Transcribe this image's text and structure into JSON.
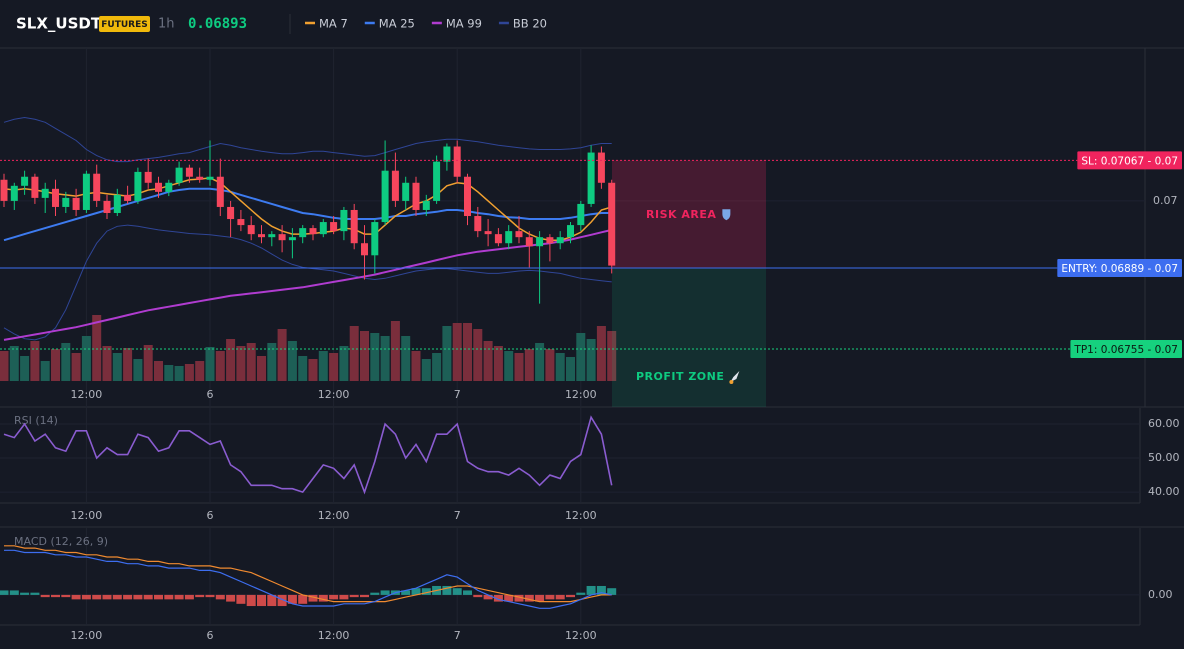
{
  "header": {
    "symbol": "SLX_USDT",
    "badge": "FUTURES",
    "interval": "1h",
    "price": 0.06893
  },
  "chart_data": [
    {
      "type": "candlestick",
      "open": [
        0.07035,
        0.07,
        0.07025,
        0.0704,
        0.07005,
        0.0702,
        0.0699,
        0.07005,
        0.06985,
        0.07045,
        0.07,
        0.0698,
        0.0701,
        0.07,
        0.07048,
        0.0703,
        0.07015,
        0.0703,
        0.07055,
        0.0704,
        0.07035,
        0.0704,
        0.0699,
        0.0697,
        0.0696,
        0.06945,
        0.0694,
        0.06945,
        0.06935,
        0.0694,
        0.06955,
        0.06945,
        0.06965,
        0.0695,
        0.06985,
        0.0693,
        0.0691,
        0.06965,
        0.0705,
        0.07,
        0.0703,
        0.06985,
        0.07,
        0.07065,
        0.0709,
        0.0704,
        0.06975,
        0.0695,
        0.06945,
        0.0693,
        0.0695,
        0.0694,
        0.06925,
        0.0694,
        0.0693,
        0.0694,
        0.0696,
        0.06995,
        0.0708,
        0.0703
      ],
      "high": [
        0.07045,
        0.0703,
        0.0705,
        0.07045,
        0.0703,
        0.07035,
        0.07015,
        0.0702,
        0.0705,
        0.0706,
        0.0701,
        0.0702,
        0.07025,
        0.07055,
        0.0707,
        0.0704,
        0.07035,
        0.07065,
        0.0706,
        0.07055,
        0.071,
        0.0707,
        0.07,
        0.06985,
        0.06975,
        0.0696,
        0.0695,
        0.0696,
        0.06955,
        0.0696,
        0.0696,
        0.0697,
        0.06975,
        0.0699,
        0.06995,
        0.0696,
        0.0697,
        0.071,
        0.0708,
        0.0704,
        0.0704,
        0.0701,
        0.07075,
        0.07095,
        0.071,
        0.07045,
        0.0699,
        0.0697,
        0.06955,
        0.0696,
        0.06975,
        0.0695,
        0.0695,
        0.06945,
        0.0695,
        0.06965,
        0.07,
        0.07092,
        0.0709,
        0.07035
      ],
      "low": [
        0.0699,
        0.06985,
        0.0701,
        0.06995,
        0.0698,
        0.06975,
        0.0698,
        0.06975,
        0.0698,
        0.0699,
        0.0697,
        0.06975,
        0.06995,
        0.06995,
        0.0702,
        0.07005,
        0.07008,
        0.07025,
        0.0703,
        0.0703,
        0.07025,
        0.06975,
        0.0694,
        0.0695,
        0.06935,
        0.0693,
        0.06925,
        0.06915,
        0.06905,
        0.0693,
        0.06935,
        0.0694,
        0.06945,
        0.06935,
        0.0692,
        0.0687,
        0.0688,
        0.0696,
        0.0699,
        0.06985,
        0.06975,
        0.06975,
        0.06995,
        0.0705,
        0.0703,
        0.0696,
        0.0694,
        0.06925,
        0.06925,
        0.0692,
        0.0693,
        0.0689,
        0.0683,
        0.069,
        0.0692,
        0.0693,
        0.0695,
        0.0699,
        0.0702,
        0.0688
      ],
      "close": [
        0.07,
        0.07025,
        0.0704,
        0.07005,
        0.0702,
        0.0699,
        0.07005,
        0.06985,
        0.07045,
        0.07,
        0.0698,
        0.0701,
        0.07,
        0.07048,
        0.0703,
        0.07015,
        0.0703,
        0.07055,
        0.0704,
        0.07035,
        0.0704,
        0.0699,
        0.0697,
        0.0696,
        0.06945,
        0.0694,
        0.06945,
        0.06935,
        0.0694,
        0.06955,
        0.06945,
        0.06965,
        0.0695,
        0.06985,
        0.0693,
        0.0691,
        0.06965,
        0.0705,
        0.07,
        0.0703,
        0.06985,
        0.07,
        0.07065,
        0.0709,
        0.0704,
        0.06975,
        0.0695,
        0.06945,
        0.0693,
        0.0695,
        0.0694,
        0.06925,
        0.0694,
        0.0693,
        0.0694,
        0.0696,
        0.06995,
        0.0708,
        0.0703,
        0.06893
      ],
      "volume": [
        30,
        35,
        25,
        40,
        20,
        32,
        38,
        28,
        45,
        66,
        35,
        28,
        33,
        22,
        36,
        20,
        16,
        15,
        17,
        20,
        34,
        30,
        42,
        35,
        38,
        25,
        38,
        52,
        40,
        25,
        22,
        30,
        28,
        35,
        55,
        50,
        48,
        45,
        60,
        45,
        30,
        22,
        28,
        55,
        58,
        58,
        52,
        40,
        35,
        30,
        28,
        32,
        38,
        32,
        28,
        24,
        48,
        42,
        55,
        50
      ],
      "volume_lim": [
        0,
        100
      ],
      "up_color": "#0ecb81",
      "down_color": "#f6465d",
      "volume_up_color": "#1d5f56",
      "volume_down_color": "#7a2e3c",
      "series": [
        {
          "name": "MA 7",
          "color": "#f0a030",
          "values": [
            0.0702,
            0.07018,
            0.0702,
            0.07018,
            0.07015,
            0.07012,
            0.0701,
            0.07008,
            0.07012,
            0.07014,
            0.07012,
            0.0701,
            0.07008,
            0.07012,
            0.07018,
            0.0702,
            0.07025,
            0.0703,
            0.07035,
            0.07036,
            0.07038,
            0.0703,
            0.07015,
            0.07,
            0.06985,
            0.0697,
            0.06958,
            0.0695,
            0.06945,
            0.06945,
            0.06946,
            0.06948,
            0.0695,
            0.06955,
            0.06953,
            0.06945,
            0.06945,
            0.0696,
            0.06975,
            0.06985,
            0.06995,
            0.07,
            0.0701,
            0.07025,
            0.0703,
            0.07028,
            0.07015,
            0.07,
            0.06985,
            0.0697,
            0.06955,
            0.06945,
            0.06938,
            0.06935,
            0.06935,
            0.0694,
            0.06948,
            0.06965,
            0.06985,
            0.0699
          ]
        },
        {
          "name": "MA 25",
          "color": "#3d7bf0",
          "values": [
            0.06935,
            0.0694,
            0.06945,
            0.0695,
            0.06955,
            0.0696,
            0.06965,
            0.0697,
            0.06975,
            0.0698,
            0.06985,
            0.0699,
            0.06995,
            0.07,
            0.07005,
            0.0701,
            0.07015,
            0.07018,
            0.0702,
            0.0702,
            0.0702,
            0.07018,
            0.07015,
            0.0701,
            0.07005,
            0.07,
            0.06995,
            0.0699,
            0.06985,
            0.0698,
            0.06978,
            0.06975,
            0.06972,
            0.0697,
            0.0697,
            0.0697,
            0.0697,
            0.06972,
            0.06975,
            0.06975,
            0.06978,
            0.0698,
            0.06982,
            0.06985,
            0.06985,
            0.06983,
            0.0698,
            0.06978,
            0.06975,
            0.06973,
            0.06972,
            0.0697,
            0.0697,
            0.0697,
            0.0697,
            0.06972,
            0.06975,
            0.06978,
            0.0698,
            0.0698
          ]
        },
        {
          "name": "MA 99",
          "color": "#b03cd0",
          "values": [
            0.0677,
            0.06773,
            0.06776,
            0.06779,
            0.06782,
            0.06785,
            0.06788,
            0.06791,
            0.06795,
            0.06799,
            0.06803,
            0.06807,
            0.06811,
            0.06815,
            0.06819,
            0.06822,
            0.06825,
            0.06828,
            0.06831,
            0.06834,
            0.06837,
            0.0684,
            0.06843,
            0.06845,
            0.06847,
            0.06849,
            0.06851,
            0.06853,
            0.06855,
            0.06857,
            0.0686,
            0.06863,
            0.06866,
            0.06869,
            0.06872,
            0.06875,
            0.06878,
            0.06882,
            0.06886,
            0.0689,
            0.06894,
            0.06898,
            0.06902,
            0.06906,
            0.0691,
            0.06913,
            0.06916,
            0.06918,
            0.0692,
            0.06922,
            0.06924,
            0.06926,
            0.06928,
            0.0693,
            0.06933,
            0.06936,
            0.0694,
            0.06944,
            0.06948,
            0.06952
          ]
        },
        {
          "name": "BB 20",
          "color": "#2f4596",
          "upper": [
            0.0713,
            0.07135,
            0.07138,
            0.07135,
            0.0713,
            0.0712,
            0.0711,
            0.071,
            0.07085,
            0.07075,
            0.07068,
            0.07065,
            0.07065,
            0.07068,
            0.0707,
            0.07072,
            0.07075,
            0.07078,
            0.0708,
            0.07085,
            0.0709,
            0.07095,
            0.07092,
            0.07088,
            0.07085,
            0.07082,
            0.0708,
            0.07078,
            0.07078,
            0.0708,
            0.07082,
            0.07082,
            0.0708,
            0.07078,
            0.07076,
            0.07074,
            0.07075,
            0.0708,
            0.07085,
            0.0709,
            0.07095,
            0.07098,
            0.071,
            0.07102,
            0.07102,
            0.071,
            0.07098,
            0.07095,
            0.07092,
            0.0709,
            0.07088,
            0.07086,
            0.07085,
            0.07085,
            0.07085,
            0.07086,
            0.07088,
            0.07092,
            0.07095,
            0.07095
          ],
          "lower": [
            0.0679,
            0.0678,
            0.06772,
            0.0677,
            0.06775,
            0.0679,
            0.0682,
            0.0686,
            0.069,
            0.0693,
            0.0695,
            0.06958,
            0.0696,
            0.06958,
            0.06955,
            0.06952,
            0.0695,
            0.06948,
            0.06946,
            0.06945,
            0.06944,
            0.06942,
            0.0694,
            0.06936,
            0.0693,
            0.06922,
            0.06912,
            0.06902,
            0.06895,
            0.0689,
            0.06888,
            0.06886,
            0.06884,
            0.0688,
            0.06876,
            0.06872,
            0.0687,
            0.06872,
            0.06876,
            0.0688,
            0.06884,
            0.06886,
            0.06888,
            0.06888,
            0.06886,
            0.06884,
            0.06882,
            0.0688,
            0.0688,
            0.06882,
            0.06884,
            0.06885,
            0.06884,
            0.06882,
            0.0688,
            0.06876,
            0.06872,
            0.0687,
            0.06868,
            0.06866
          ]
        }
      ],
      "ylim": [
        0.06659,
        0.07253
      ],
      "yticks": [
        0.07
      ],
      "xticks": [
        {
          "value": 8,
          "label": "12:00"
        },
        {
          "value": 20,
          "label": "6"
        },
        {
          "value": 32,
          "label": "12:00"
        },
        {
          "value": 44,
          "label": "7"
        },
        {
          "value": 56,
          "label": "12:00"
        }
      ],
      "grid": true,
      "levels": [
        {
          "value": 0.07067,
          "label": "SL: 0.07067 - 0.07",
          "color": "#f0245e",
          "text_color": "#ffffff",
          "dash": true
        },
        {
          "value": 0.06889,
          "label": "ENTRY: 0.06889 - 0.07",
          "color": "#3d6ef0",
          "text_color": "#ffffff",
          "dash": false
        },
        {
          "value": 0.06755,
          "label": "TP1: 0.06755 - 0.07",
          "color": "#16d17e",
          "text_color": "#0b1a12",
          "dash": true
        }
      ],
      "zones": [
        {
          "label": "RISK AREA",
          "color": "#f0245e"
        },
        {
          "label": "PROFIT ZONE",
          "color": "#0ecb81"
        }
      ]
    },
    {
      "type": "line",
      "title": "RSI (14)",
      "color": "#8a5cd0",
      "values": [
        57,
        56,
        60,
        55,
        57,
        53,
        52,
        58,
        58,
        50,
        53,
        51,
        51,
        57,
        56,
        52,
        53,
        58,
        58,
        56,
        54,
        55,
        48,
        46,
        42,
        42,
        42,
        41,
        41,
        40,
        44,
        48,
        47,
        44,
        48,
        40,
        49,
        60,
        57,
        50,
        54,
        49,
        57,
        57,
        60,
        49,
        47,
        46,
        46,
        45,
        47,
        45,
        42,
        45,
        44,
        49,
        51,
        62,
        57,
        42
      ],
      "ylim": [
        36.8,
        64.7
      ],
      "yticks": [
        {
          "value": 60,
          "label": "60.00"
        },
        {
          "value": 50,
          "label": "50.00"
        },
        {
          "value": 40,
          "label": "40.00"
        }
      ],
      "xticks": [
        {
          "value": 8,
          "label": "12:00"
        },
        {
          "value": 20,
          "label": "6"
        },
        {
          "value": 32,
          "label": "12:00"
        },
        {
          "value": 44,
          "label": "7"
        },
        {
          "value": 56,
          "label": "12:00"
        }
      ],
      "grid": true
    },
    {
      "type": "macd",
      "title": "MACD (12, 26, 9)",
      "macd_color": "#3d6ef0",
      "signal_color": "#f08a30",
      "up_color": "#26a69a",
      "down_color": "#ef5350",
      "macd": [
        0.0002,
        0.0002,
        0.00019,
        0.00019,
        0.00019,
        0.00018,
        0.00018,
        0.00017,
        0.00017,
        0.00016,
        0.00015,
        0.00015,
        0.00014,
        0.00014,
        0.00013,
        0.00013,
        0.00012,
        0.00012,
        0.00012,
        0.00011,
        0.00011,
        0.0001,
        8e-05,
        6e-05,
        4e-05,
        2e-05,
        0.0,
        -2e-05,
        -4e-05,
        -5e-05,
        -5e-05,
        -5e-05,
        -5e-05,
        -4e-05,
        -4e-05,
        -4e-05,
        -3e-05,
        -1e-05,
        1e-05,
        2e-05,
        3e-05,
        5e-05,
        7e-05,
        9e-05,
        8e-05,
        5e-05,
        2e-05,
        0.0,
        -2e-05,
        -3e-05,
        -4e-05,
        -5e-05,
        -6e-05,
        -6e-05,
        -5e-05,
        -4e-05,
        -2e-05,
        0.0,
        1e-05,
        0.0
      ],
      "signal": [
        0.00022,
        0.00022,
        0.00021,
        0.00021,
        0.0002,
        0.0002,
        0.00019,
        0.00019,
        0.00018,
        0.00018,
        0.00017,
        0.00017,
        0.00016,
        0.00016,
        0.00015,
        0.00015,
        0.00014,
        0.00014,
        0.00013,
        0.00013,
        0.00013,
        0.00012,
        0.00012,
        0.00011,
        0.0001,
        8e-05,
        6e-05,
        4e-05,
        2e-05,
        0.0,
        -1e-05,
        -2e-05,
        -3e-05,
        -3e-05,
        -3e-05,
        -3e-05,
        -3e-05,
        -3e-05,
        -2e-05,
        -1e-05,
        0.0,
        1e-05,
        2e-05,
        3e-05,
        4e-05,
        4e-05,
        3e-05,
        2e-05,
        1e-05,
        0.0,
        -1e-05,
        -2e-05,
        -3e-05,
        -3e-05,
        -3e-05,
        -3e-05,
        -2e-05,
        -1e-05,
        0.0,
        0.0
      ],
      "histogram": [
        2e-05,
        2e-05,
        1e-05,
        1e-05,
        -1e-05,
        -1e-05,
        -1e-05,
        -2e-05,
        -2e-05,
        -2e-05,
        -2e-05,
        -2e-05,
        -2e-05,
        -2e-05,
        -2e-05,
        -2e-05,
        -2e-05,
        -2e-05,
        -2e-05,
        -1e-05,
        -1e-05,
        -2e-05,
        -3e-05,
        -4e-05,
        -5e-05,
        -5e-05,
        -5e-05,
        -5e-05,
        -4e-05,
        -4e-05,
        -3e-05,
        -3e-05,
        -2e-05,
        -2e-05,
        -1e-05,
        -1e-05,
        1e-05,
        2e-05,
        2e-05,
        2e-05,
        3e-05,
        3e-05,
        4e-05,
        4e-05,
        3e-05,
        2e-05,
        -1e-05,
        -2e-05,
        -3e-05,
        -3e-05,
        -3e-05,
        -3e-05,
        -3e-05,
        -2e-05,
        -2e-05,
        -1e-05,
        1e-05,
        4e-05,
        4e-05,
        3e-05
      ],
      "ylim": [
        -0.000135,
        0.0003
      ],
      "yticks": [
        {
          "value": 0,
          "label": "0.00"
        }
      ],
      "xticks": [
        {
          "value": 8,
          "label": "12:00"
        },
        {
          "value": 20,
          "label": "6"
        },
        {
          "value": 32,
          "label": "12:00"
        },
        {
          "value": 44,
          "label": "7"
        },
        {
          "value": 56,
          "label": "12:00"
        }
      ],
      "grid": true
    }
  ]
}
